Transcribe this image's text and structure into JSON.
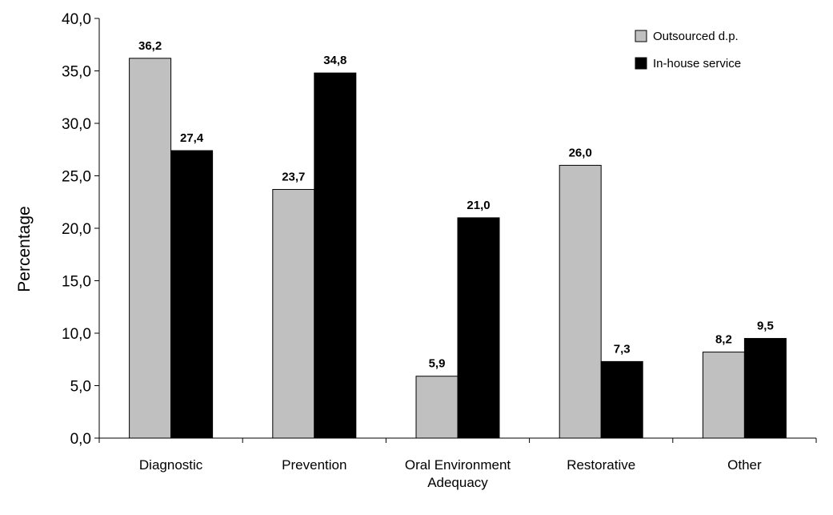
{
  "chart_data": {
    "type": "bar",
    "title": "",
    "xlabel": "",
    "ylabel": "Percentage",
    "ylim": [
      0,
      40
    ],
    "ytick_step": 5,
    "ytick_labels": [
      "0,0",
      "5,0",
      "10,0",
      "15,0",
      "20,0",
      "25,0",
      "30,0",
      "35,0",
      "40,0"
    ],
    "categories": [
      [
        "Diagnostic"
      ],
      [
        "Prevention"
      ],
      [
        "Oral Environment",
        "Adequacy"
      ],
      [
        "Restorative"
      ],
      [
        "Other"
      ]
    ],
    "series": [
      {
        "name": "Outsourced d.p.",
        "color": "#c0c0c0",
        "values": [
          36.2,
          23.7,
          5.9,
          26.0,
          8.2
        ],
        "labels": [
          "36,2",
          "23,7",
          "5,9",
          "26,0",
          "8,2"
        ]
      },
      {
        "name": "In-house service",
        "color": "#000000",
        "values": [
          27.4,
          34.8,
          21.0,
          7.3,
          9.5
        ],
        "labels": [
          "27,4",
          "34,8",
          "21,0",
          "7,3",
          "9,5"
        ]
      }
    ],
    "legend_position": "top-right",
    "grid": false
  }
}
